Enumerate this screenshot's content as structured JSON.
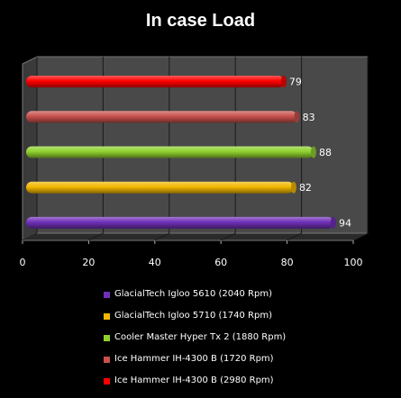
{
  "chart_data": {
    "type": "bar",
    "orientation": "horizontal",
    "title": "In case Load",
    "xlim": [
      0,
      100
    ],
    "xticks": [
      0,
      20,
      40,
      60,
      80,
      100
    ],
    "grid": true,
    "legend_position": "bottom",
    "series": [
      {
        "name": "GlacialTech Igloo 5610 (2040 Rpm)",
        "value": 94,
        "color": "#6f2fb8"
      },
      {
        "name": "GlacialTech Igloo 5710 (1740 Rpm)",
        "value": 82,
        "color": "#f2b800"
      },
      {
        "name": "Cooler Master Hyper Tx 2 (1880 Rpm)",
        "value": 88,
        "color": "#8fd12e"
      },
      {
        "name": "Ice Hammer IH-4300 B (1720 Rpm)",
        "value": 83,
        "color": "#c8504c"
      },
      {
        "name": "Ice Hammer IH-4300 B (2980 Rpm)",
        "value": 79,
        "color": "#ff0000"
      }
    ]
  }
}
